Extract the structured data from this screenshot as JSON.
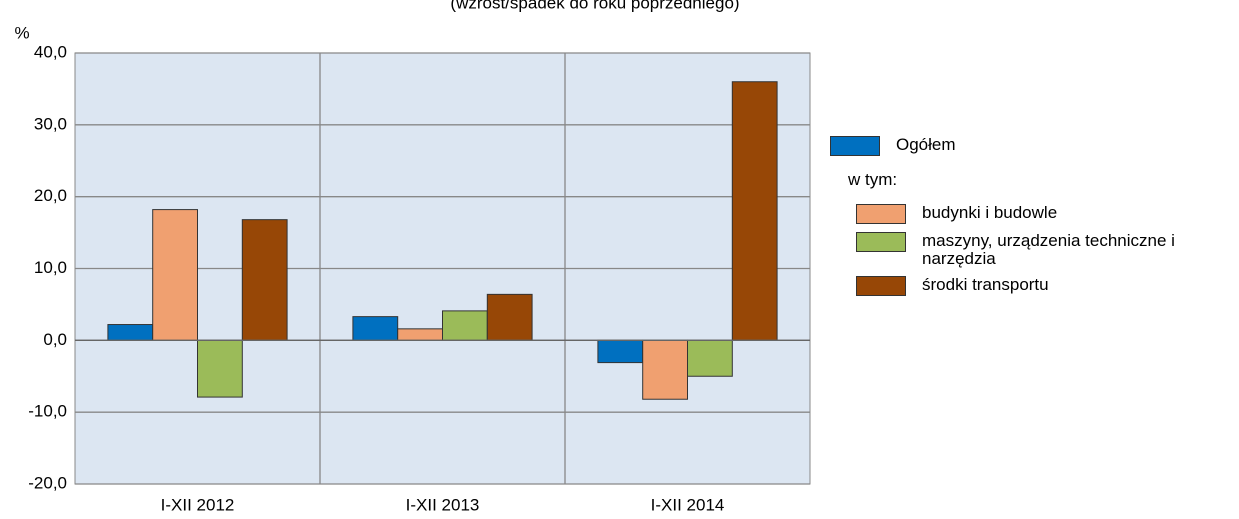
{
  "chart_data": {
    "type": "bar",
    "subtitle": "(wzrost/spadek do roku poprzedniego)",
    "y_label": "%",
    "legend_note": "w tym:",
    "categories": [
      "I-XII 2012",
      "I-XII 2013",
      "I-XII 2014"
    ],
    "series": [
      {
        "name": "Ogółem",
        "color": "#0070c0",
        "values": [
          2.2,
          3.3,
          -3.1
        ]
      },
      {
        "name": "budynki i budowle",
        "color": "#f0a070",
        "values": [
          18.2,
          1.6,
          -8.2
        ]
      },
      {
        "name": "maszyny, urządzenia techniczne i narzędzia",
        "color": "#9bbb59",
        "values": [
          -7.9,
          4.1,
          -5.0
        ]
      },
      {
        "name": "środki transportu",
        "color": "#974706",
        "values": [
          16.8,
          6.4,
          36.0
        ]
      }
    ],
    "ylim": [
      -20,
      40
    ],
    "yticks": [
      {
        "value": -20,
        "label": "-20,0"
      },
      {
        "value": -10,
        "label": "-10,0"
      },
      {
        "value": 0,
        "label": "0,0"
      },
      {
        "value": 10,
        "label": "10,0"
      },
      {
        "value": 20,
        "label": "20,0"
      },
      {
        "value": 30,
        "label": "30,0"
      },
      {
        "value": 40,
        "label": "40,0"
      }
    ],
    "grid": true,
    "plot_background": "#dce6f2",
    "legend_position": "right"
  }
}
